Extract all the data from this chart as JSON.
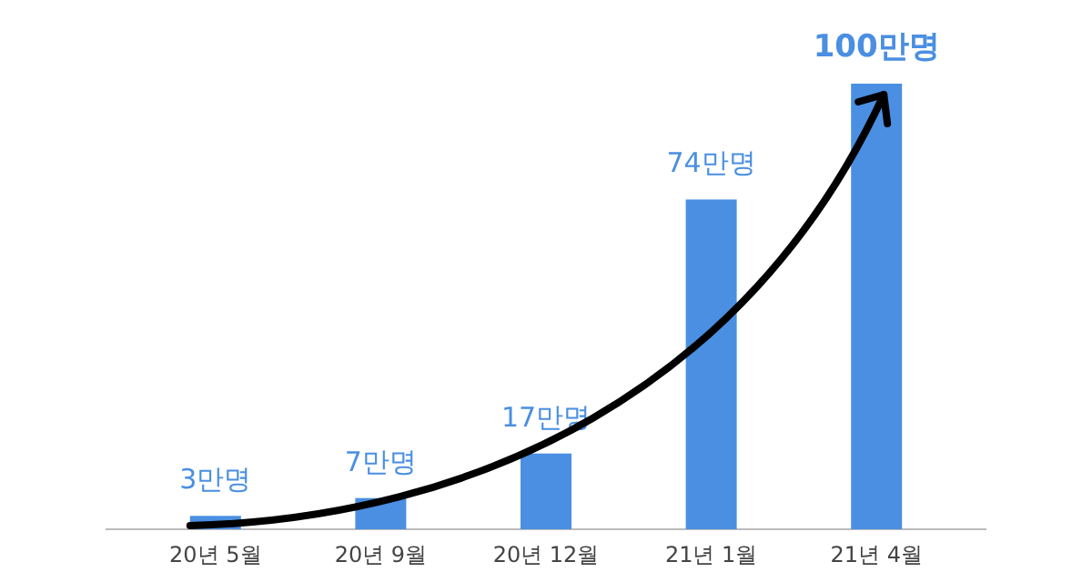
{
  "chart_data": {
    "type": "bar",
    "categories": [
      "20년 5월",
      "20년 9월",
      "20년 12월",
      "21년 1월",
      "21년 4월"
    ],
    "values": [
      3,
      7,
      17,
      74,
      100
    ],
    "value_labels": [
      "3만명",
      "7만명",
      "17만명",
      "74만명",
      "100만명"
    ],
    "color": "#4a8fe2",
    "ylim": [
      0,
      100
    ],
    "tick_labels": "x",
    "grid": false
  }
}
